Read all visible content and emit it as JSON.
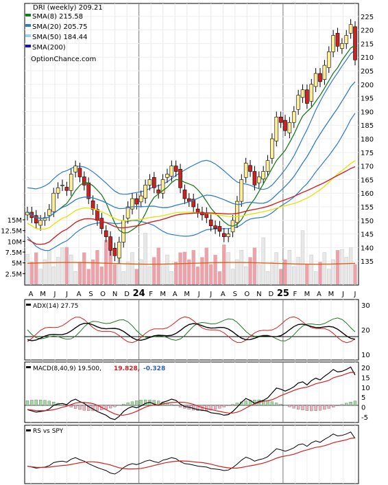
{
  "chart_data": {
    "type": "line",
    "ticker_line": "DRI (weekly) 209.21",
    "source": "OptionChance.com",
    "legend": [
      {
        "name": "SMA(8) 215.58",
        "color": "#1a7a1a"
      },
      {
        "name": "SMA(20) 205.75",
        "color": "#2a7ad0"
      },
      {
        "name": "SMA(50) 184.44",
        "color": "#9ad0ee"
      },
      {
        "name": "SMA(200)",
        "color": "#1010d0"
      }
    ],
    "x_labels": [
      "A",
      "M",
      "J",
      "J",
      "A",
      "S",
      "O",
      "N",
      "D",
      "24",
      "F",
      "M",
      "A",
      "M",
      "J",
      "J",
      "A",
      "S",
      "O",
      "N",
      "D",
      "25",
      "F",
      "M",
      "A",
      "M",
      "J",
      "J"
    ],
    "price_axis": {
      "ylim": [
        130,
        229
      ],
      "ticks": [
        135,
        140,
        145,
        150,
        155,
        160,
        165,
        170,
        175,
        180,
        185,
        190,
        195,
        200,
        205,
        210,
        215,
        220,
        225
      ]
    },
    "volume_axis": {
      "ticks": [
        "2.5M",
        "5M",
        "7.5M",
        "10M",
        "12.5M",
        "15M"
      ],
      "max": 15
    },
    "panels": {
      "adx_title": "ADX(14) 27.75",
      "adx_ticks": [
        "10",
        "20",
        "30"
      ],
      "macd_title": "MACD(8,40,9) 19.500,",
      "macd_v2": "19.828,",
      "macd_v3": "-0.328",
      "macd_ticks": [
        "-5",
        "0",
        "5",
        "10",
        "15",
        "20"
      ],
      "rs_title": "RS vs SPY"
    },
    "close": [
      153,
      151,
      149,
      150,
      151,
      154,
      160,
      162,
      163,
      161,
      167,
      170,
      166,
      163,
      158,
      154,
      150,
      147,
      144,
      139,
      137,
      142,
      150,
      155,
      158,
      156,
      159,
      163,
      165,
      162,
      160,
      165,
      167,
      170,
      168,
      162,
      158,
      157,
      155,
      153,
      152,
      151,
      148,
      147,
      146,
      144,
      145,
      150,
      157,
      165,
      171,
      168,
      163,
      166,
      168,
      172,
      180,
      188,
      186,
      183,
      186,
      190,
      196,
      198,
      193,
      200,
      204,
      201,
      207,
      212,
      218,
      214,
      215,
      218,
      222,
      209
    ]
  },
  "colors": {
    "up": "#ffee99",
    "down": "#cc2222",
    "vol": "#f0a0a8",
    "sma8": "#1a7a1a",
    "sma20": "#2a7ad0",
    "sma50": "#e8e000",
    "sma200": "#d02020"
  }
}
